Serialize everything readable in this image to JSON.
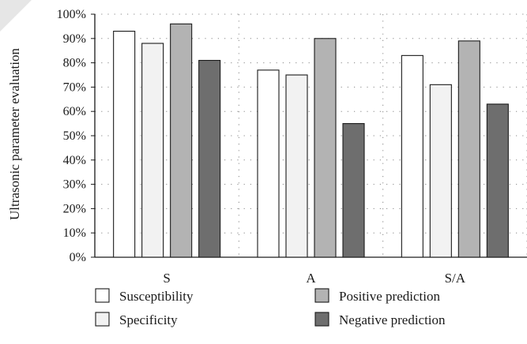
{
  "chart_data": {
    "type": "bar",
    "categories": [
      "S",
      "A",
      "S/A"
    ],
    "series": [
      {
        "name": "Susceptibility",
        "color": "#ffffff",
        "values": [
          93,
          77,
          83
        ]
      },
      {
        "name": "Specificity",
        "color": "#f2f2f2",
        "values": [
          88,
          75,
          71
        ]
      },
      {
        "name": "Positive prediction",
        "color": "#b3b3b3",
        "values": [
          96,
          90,
          89
        ]
      },
      {
        "name": "Negative prediction",
        "color": "#6e6e6e",
        "values": [
          81,
          55,
          63
        ]
      }
    ],
    "ylabel": "Ultrasonic parameter evaluation",
    "ylim": [
      0,
      100
    ],
    "yticks": [
      "0%",
      "10%",
      "20%",
      "30%",
      "40%",
      "50%",
      "60%",
      "70%",
      "80%",
      "90%",
      "100%"
    ],
    "grid": true,
    "legend_position": "bottom"
  }
}
